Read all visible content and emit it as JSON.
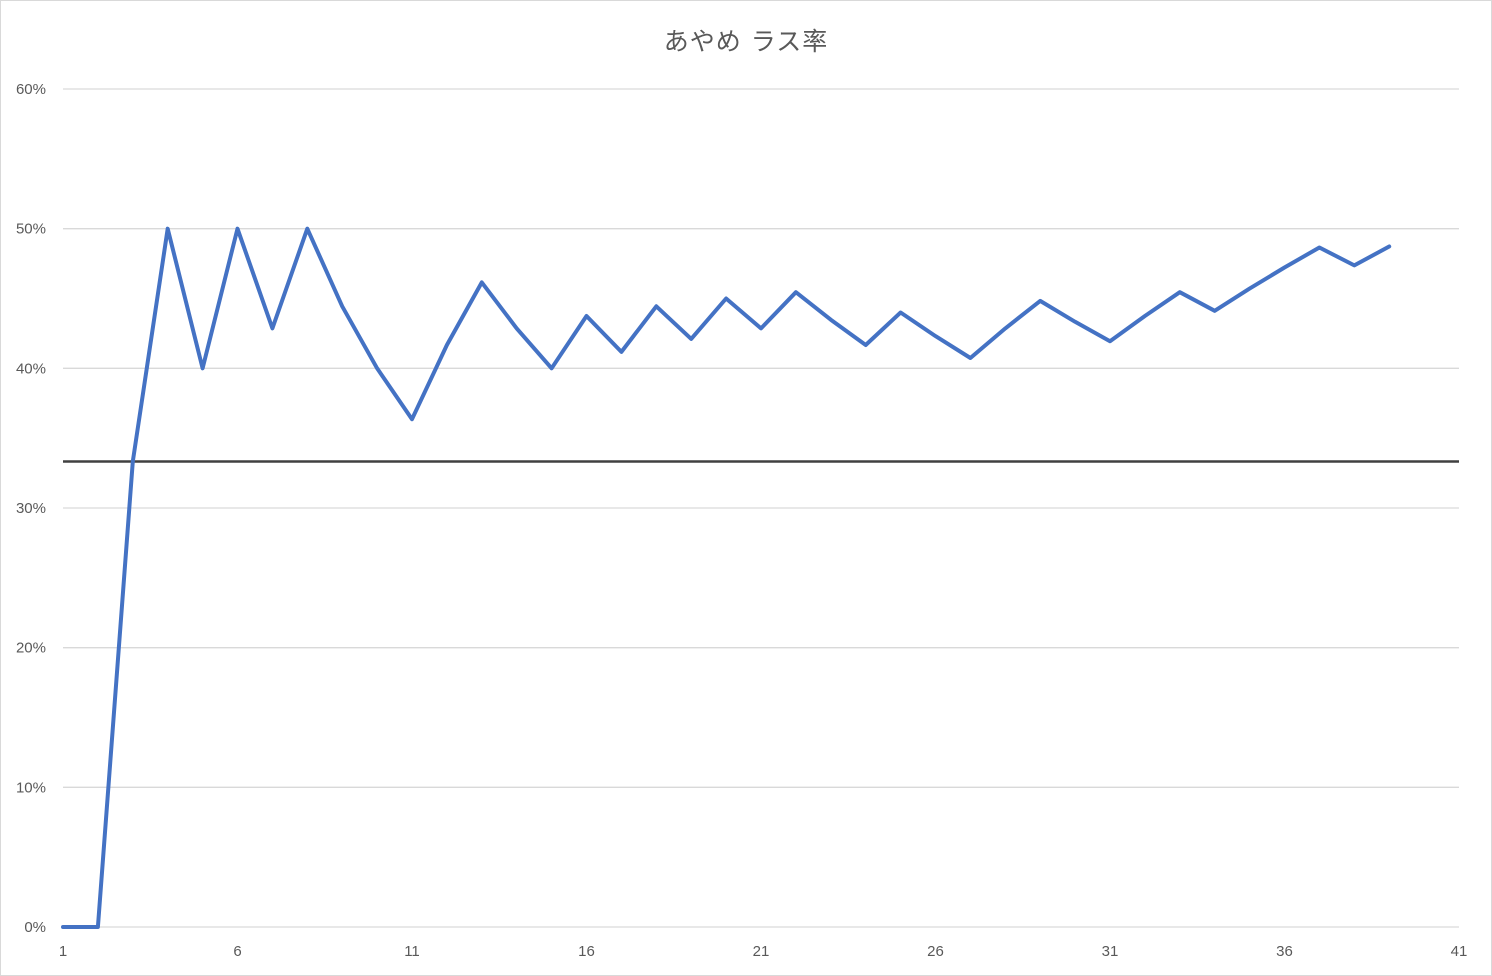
{
  "chart_data": {
    "type": "line",
    "title": "あやめ ラス率",
    "xlabel": "",
    "ylabel": "",
    "x_tick_labels": [
      "1",
      "6",
      "11",
      "16",
      "21",
      "26",
      "31",
      "36",
      "41"
    ],
    "x_ticks": [
      1,
      6,
      11,
      16,
      21,
      26,
      31,
      36,
      41
    ],
    "y_tick_labels": [
      "0%",
      "10%",
      "20%",
      "30%",
      "40%",
      "50%",
      "60%"
    ],
    "y_ticks": [
      0,
      0.1,
      0.2,
      0.3,
      0.4,
      0.5,
      0.6
    ],
    "xlim": [
      1,
      41
    ],
    "ylim": [
      0,
      0.6
    ],
    "grid": true,
    "legend": "none",
    "series": [
      {
        "color": "#4472c4",
        "x": [
          1,
          2,
          3,
          4,
          5,
          6,
          7,
          8,
          9,
          10,
          11,
          12,
          13,
          14,
          15,
          16,
          17,
          18,
          19,
          20,
          21,
          22,
          23,
          24,
          25,
          26,
          27,
          28,
          29,
          30,
          31,
          32,
          33,
          34,
          35,
          36,
          37,
          38,
          39,
          40
        ],
        "values": [
          0,
          0,
          0.3333,
          0.5,
          0.4,
          0.5,
          0.4286,
          0.5,
          0.4444,
          0.4,
          0.3636,
          0.4167,
          0.4615,
          0.4286,
          0.4,
          0.4375,
          0.4118,
          0.4444,
          0.4211,
          0.45,
          0.4286,
          0.4545,
          0.4348,
          0.4167,
          0.44,
          0.4231,
          0.4074,
          0.4286,
          0.4483,
          0.4333,
          0.4194,
          0.4375,
          0.4545,
          0.4412,
          0.4571,
          0.4722,
          0.4865,
          0.4737,
          0.4872,
          null
        ]
      }
    ],
    "reference_line": {
      "y": 0.3333,
      "color": "#404040"
    }
  }
}
